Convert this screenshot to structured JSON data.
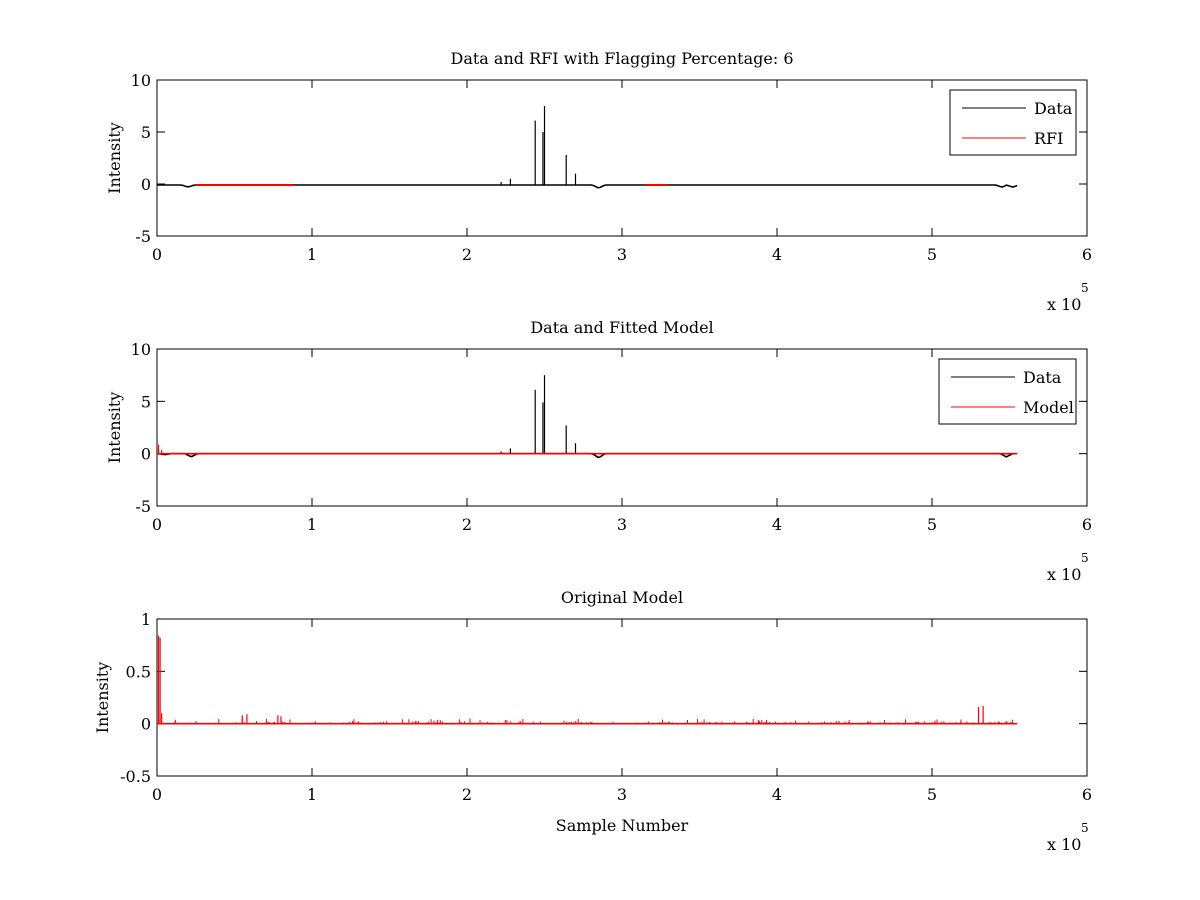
{
  "chart_data": [
    {
      "type": "line",
      "title": "Data and RFI with Flagging Percentage: 6",
      "xlabel": "",
      "ylabel": "Intensity",
      "xlim": [
        0,
        6
      ],
      "ylim": [
        -5,
        10
      ],
      "xticks": [
        "0",
        "1",
        "2",
        "3",
        "4",
        "5",
        "6"
      ],
      "yticks": [
        "-5",
        "0",
        "5",
        "10"
      ],
      "x_multiplier": "x 10",
      "x_exponent": "5",
      "legend": {
        "position": "top-right",
        "entries": [
          "Data",
          "RFI"
        ]
      },
      "series": [
        {
          "name": "Data",
          "color": "#000000",
          "x_range": [
            0,
            5.55
          ],
          "baseline": -0.1,
          "dips": [
            {
              "x": 0.2,
              "y": -0.3
            },
            {
              "x": 2.85,
              "y": -0.4
            },
            {
              "x": 5.45,
              "y": -0.3
            },
            {
              "x": 5.52,
              "y": -0.3
            }
          ],
          "spikes": [
            {
              "x": 2.22,
              "y": 0.2
            },
            {
              "x": 2.28,
              "y": 0.5
            },
            {
              "x": 2.44,
              "y": 6.1
            },
            {
              "x": 2.49,
              "y": 5.0
            },
            {
              "x": 2.5,
              "y": 7.5
            },
            {
              "x": 2.64,
              "y": 2.8
            },
            {
              "x": 2.7,
              "y": 1.0
            }
          ]
        },
        {
          "name": "RFI",
          "color": "#ff0000",
          "segments": [
            [
              0.25,
              0.88
            ],
            [
              3.15,
              3.3
            ]
          ],
          "value": -0.1
        }
      ]
    },
    {
      "type": "line",
      "title": "Data and Fitted Model",
      "xlabel": "",
      "ylabel": "Intensity",
      "xlim": [
        0,
        6
      ],
      "ylim": [
        -5,
        10
      ],
      "xticks": [
        "0",
        "1",
        "2",
        "3",
        "4",
        "5",
        "6"
      ],
      "yticks": [
        "-5",
        "0",
        "5",
        "10"
      ],
      "x_multiplier": "x 10",
      "x_exponent": "5",
      "legend": {
        "position": "top-right",
        "entries": [
          "Data",
          "Model"
        ]
      },
      "series": [
        {
          "name": "Data",
          "color": "#000000",
          "x_range": [
            0,
            5.55
          ],
          "baseline": 0,
          "dips": [
            {
              "x": 0.05,
              "y": -0.1
            },
            {
              "x": 0.22,
              "y": -0.3
            },
            {
              "x": 2.85,
              "y": -0.4
            },
            {
              "x": 5.48,
              "y": -0.3
            }
          ],
          "spikes": [
            {
              "x": 2.22,
              "y": 0.2
            },
            {
              "x": 2.28,
              "y": 0.5
            },
            {
              "x": 2.44,
              "y": 6.1
            },
            {
              "x": 2.49,
              "y": 4.9
            },
            {
              "x": 2.5,
              "y": 7.5
            },
            {
              "x": 2.64,
              "y": 2.7
            },
            {
              "x": 2.7,
              "y": 1.0
            }
          ]
        },
        {
          "name": "Model",
          "color": "#ff0000",
          "x_range": [
            0,
            5.55
          ],
          "baseline": 0,
          "spikes": [
            {
              "x": 0.01,
              "y": 0.85
            },
            {
              "x": 0.03,
              "y": 0.35
            }
          ]
        }
      ]
    },
    {
      "type": "line",
      "title": "Original Model",
      "xlabel": "Sample Number",
      "ylabel": "Intensity",
      "xlim": [
        0,
        6
      ],
      "ylim": [
        -0.5,
        1
      ],
      "xticks": [
        "0",
        "1",
        "2",
        "3",
        "4",
        "5",
        "6"
      ],
      "yticks": [
        "-0.5",
        "0",
        "0.5",
        "1"
      ],
      "x_multiplier": "x 10",
      "x_exponent": "5",
      "legend": null,
      "series": [
        {
          "name": "Model",
          "color": "#ff0000",
          "x_range": [
            0,
            5.55
          ],
          "baseline": 0,
          "spikes": [
            {
              "x": 0.01,
              "y": 0.84
            },
            {
              "x": 0.02,
              "y": 0.82
            },
            {
              "x": 0.03,
              "y": 0.1
            },
            {
              "x": 0.55,
              "y": 0.08
            },
            {
              "x": 0.58,
              "y": 0.09
            },
            {
              "x": 0.78,
              "y": 0.08
            },
            {
              "x": 0.8,
              "y": 0.07
            },
            {
              "x": 5.3,
              "y": 0.16
            },
            {
              "x": 5.33,
              "y": 0.17
            }
          ],
          "noise_amplitude": 0.05
        }
      ]
    }
  ]
}
